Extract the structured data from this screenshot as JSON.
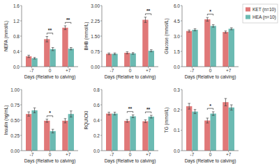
{
  "chart_data": [
    {
      "type": "bar",
      "ylabel": "NEFA (mmol/L)",
      "xlabel": "Days (Relative to calving)",
      "categories": [
        "-7",
        "0",
        "+7"
      ],
      "series": [
        {
          "name": "KET (n=10)",
          "color": "#E07878",
          "values": [
            0.27,
            0.72,
            1.02
          ],
          "errors": [
            0.03,
            0.07,
            0.05
          ]
        },
        {
          "name": "HEA (n=10)",
          "color": "#6BBAB2",
          "values": [
            0.22,
            0.46,
            0.47
          ],
          "errors": [
            0.02,
            0.04,
            0.03
          ]
        }
      ],
      "annotations": [
        null,
        "**",
        "**"
      ],
      "ylim": [
        0.0,
        1.6
      ],
      "yticks": [
        {
          "value": 0.0,
          "label": "0.0"
        },
        0.4,
        0.8,
        1.2,
        1.6
      ],
      "grid": false,
      "legend": "upper right"
    },
    {
      "type": "bar",
      "ylabel": "BHB (mmol/L)",
      "xlabel": "Days (Relative to calving)",
      "categories": [
        "-7",
        "0",
        "+7"
      ],
      "series": [
        {
          "name": "KET (n=10)",
          "color": "#E07878",
          "values": [
            0.63,
            0.68,
            2.3
          ],
          "errors": [
            0.04,
            0.05,
            0.13
          ]
        },
        {
          "name": "HEA (n=10)",
          "color": "#6BBAB2",
          "values": [
            0.63,
            0.65,
            0.78
          ],
          "errors": [
            0.04,
            0.04,
            0.05
          ]
        }
      ],
      "annotations": [
        null,
        null,
        "**"
      ],
      "ylim": [
        0.0,
        3.0
      ],
      "yticks": [
        {
          "value": 0.0,
          "label": "0.00"
        },
        0.75,
        {
          "value": 1.5,
          "label": "1.50"
        },
        2.25,
        {
          "value": 3.0,
          "label": "3.00"
        }
      ],
      "grid": false
    },
    {
      "type": "bar",
      "ylabel": "Glucose (mmol/L)",
      "xlabel": "Days (Relative to calving)",
      "categories": [
        "-7",
        "0",
        "+7"
      ],
      "series": [
        {
          "name": "KET (n=10)",
          "color": "#E07878",
          "values": [
            3.5,
            4.65,
            3.4
          ],
          "errors": [
            0.1,
            0.18,
            0.1
          ]
        },
        {
          "name": "HEA (n=10)",
          "color": "#6BBAB2",
          "values": [
            3.62,
            4.0,
            3.72
          ],
          "errors": [
            0.1,
            0.12,
            0.1
          ]
        }
      ],
      "annotations": [
        null,
        "*",
        null
      ],
      "ylim": [
        0.0,
        6.0
      ],
      "yticks": [
        {
          "value": 0.0,
          "label": "0.0"
        },
        1.5,
        {
          "value": 3.0,
          "label": "3.0"
        },
        4.5,
        {
          "value": 6.0,
          "label": "6.0"
        }
      ],
      "grid": false
    },
    {
      "type": "bar",
      "ylabel": "Insulin (ng/mL)",
      "xlabel": "Days (Relative to calving)",
      "categories": [
        "-7",
        "0",
        "+7"
      ],
      "series": [
        {
          "name": "KET (n=10)",
          "color": "#E07878",
          "values": [
            0.6,
            0.49,
            0.49
          ],
          "errors": [
            0.035,
            0.025,
            0.035
          ]
        },
        {
          "name": "HEA (n=10)",
          "color": "#6BBAB2",
          "values": [
            0.66,
            0.32,
            0.6
          ],
          "errors": [
            0.04,
            0.03,
            0.05
          ]
        }
      ],
      "annotations": [
        null,
        "*",
        null
      ],
      "ylim": [
        0.0,
        1.0
      ],
      "yticks": [
        {
          "value": 0.0,
          "label": "0.00"
        },
        0.25,
        {
          "value": 0.5,
          "label": "0.50"
        },
        0.75,
        {
          "value": 1.0,
          "label": "1.00"
        }
      ],
      "grid": false
    },
    {
      "type": "bar",
      "ylabel": "RQUICKI",
      "xlabel": "Days (Relative to calving)",
      "categories": [
        "-7",
        "0",
        "+7"
      ],
      "series": [
        {
          "name": "KET (n=10)",
          "color": "#E07878",
          "values": [
            0.485,
            0.39,
            0.385
          ],
          "errors": [
            0.018,
            0.018,
            0.018
          ]
        },
        {
          "name": "HEA (n=10)",
          "color": "#6BBAB2",
          "values": [
            0.485,
            0.45,
            0.445
          ],
          "errors": [
            0.018,
            0.018,
            0.018
          ]
        }
      ],
      "annotations": [
        null,
        "**",
        "**"
      ],
      "ylim": [
        0.0,
        0.8
      ],
      "yticks": [
        {
          "value": 0.0,
          "label": "0.0"
        },
        0.2,
        0.4,
        0.6,
        0.8
      ],
      "grid": false
    },
    {
      "type": "bar",
      "ylabel": "TG (mmol/L)",
      "xlabel": "Days (Relative to calving)",
      "categories": [
        "-7",
        "0",
        "+7"
      ],
      "series": [
        {
          "name": "KET (n=10)",
          "color": "#E07878",
          "values": [
            0.218,
            0.148,
            0.238
          ],
          "errors": [
            0.014,
            0.012,
            0.018
          ]
        },
        {
          "name": "HEA (n=10)",
          "color": "#6BBAB2",
          "values": [
            0.192,
            0.182,
            0.212
          ],
          "errors": [
            0.01,
            0.009,
            0.013
          ]
        }
      ],
      "annotations": [
        null,
        "*",
        null
      ],
      "ylim": [
        0.0,
        0.3
      ],
      "yticks": [
        {
          "value": 0.0,
          "label": "0.0"
        },
        0.1,
        0.2,
        0.3
      ],
      "grid": false
    }
  ]
}
